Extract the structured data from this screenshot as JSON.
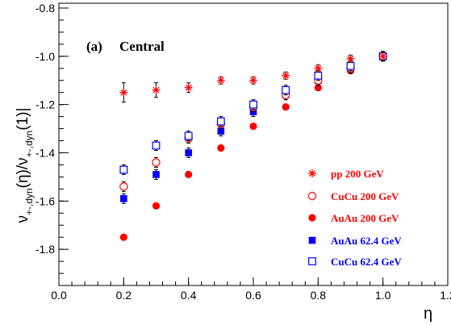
{
  "chart_data": {
    "type": "scatter",
    "annotation": "(a)",
    "subtitle": "Central",
    "xlabel": "η",
    "ylabel": {
      "parts": [
        "ν",
        "+-,dyn",
        "(η)/ν",
        "+-,dyn",
        "(1)|"
      ]
    },
    "xlim": [
      0.0,
      1.2
    ],
    "ylim": [
      -1.95,
      -0.78
    ],
    "xticks": [
      {
        "value": 0.0,
        "label": "0.0"
      },
      {
        "value": 0.2,
        "label": "0.2"
      },
      {
        "value": 0.4,
        "label": "0.4"
      },
      {
        "value": 0.6,
        "label": "0.6"
      },
      {
        "value": 0.8,
        "label": "0.8"
      },
      {
        "value": 1.0,
        "label": "1.0"
      },
      {
        "value": 1.2,
        "label": "1.2"
      }
    ],
    "yticks": [
      {
        "value": -0.8,
        "label": "-0.8"
      },
      {
        "value": -1.0,
        "label": "-1.0"
      },
      {
        "value": -1.2,
        "label": "-1.2"
      },
      {
        "value": -1.4,
        "label": "-1.4"
      },
      {
        "value": -1.6,
        "label": "-1.6"
      },
      {
        "value": -1.8,
        "label": "-1.8"
      }
    ],
    "grid": false,
    "legend_position": "bottom-right",
    "x": [
      0.2,
      0.3,
      0.4,
      0.5,
      0.6,
      0.7,
      0.8,
      0.9,
      1.0
    ],
    "series": [
      {
        "name": "pp 200 GeV",
        "marker": "asterisk",
        "color": "#ff0000",
        "values": [
          -1.15,
          -1.14,
          -1.13,
          -1.1,
          -1.1,
          -1.08,
          -1.05,
          -1.01,
          -1.0
        ],
        "errors": [
          0.04,
          0.03,
          0.02,
          0.015,
          0.015,
          0.015,
          0.015,
          0.015,
          0.015
        ]
      },
      {
        "name": "CuCu 200 GeV",
        "marker": "open-circle",
        "color": "#ff0000",
        "values": [
          -1.54,
          -1.44,
          -1.34,
          -1.28,
          -1.21,
          -1.16,
          -1.1,
          -1.05,
          -1.0
        ],
        "errors": [
          0.02,
          0.02,
          0.02,
          0.02,
          0.02,
          0.02,
          0.02,
          0.02,
          0.02
        ]
      },
      {
        "name": "AuAu 200 GeV",
        "marker": "filled-circle",
        "color": "#ff0000",
        "values": [
          -1.75,
          -1.62,
          -1.49,
          -1.38,
          -1.29,
          -1.21,
          -1.13,
          -1.06,
          -1.0
        ],
        "errors": [
          0.0,
          0.0,
          0.0,
          0.0,
          0.0,
          0.0,
          0.0,
          0.0,
          0.0
        ]
      },
      {
        "name": "AuAu 62.4 GeV",
        "marker": "filled-square",
        "color": "#0000ff",
        "values": [
          -1.59,
          -1.49,
          -1.4,
          -1.31,
          -1.23,
          -1.16,
          -1.1,
          -1.05,
          -1.0
        ],
        "errors": [
          0.02,
          0.02,
          0.02,
          0.02,
          0.02,
          0.02,
          0.02,
          0.02,
          0.02
        ]
      },
      {
        "name": "CuCu 62.4 GeV",
        "marker": "open-square",
        "color": "#0000ff",
        "values": [
          -1.47,
          -1.37,
          -1.33,
          -1.27,
          -1.2,
          -1.14,
          -1.08,
          -1.04,
          -1.0
        ],
        "errors": [
          0.02,
          0.02,
          0.02,
          0.02,
          0.02,
          0.02,
          0.02,
          0.02,
          0.02
        ]
      }
    ]
  }
}
